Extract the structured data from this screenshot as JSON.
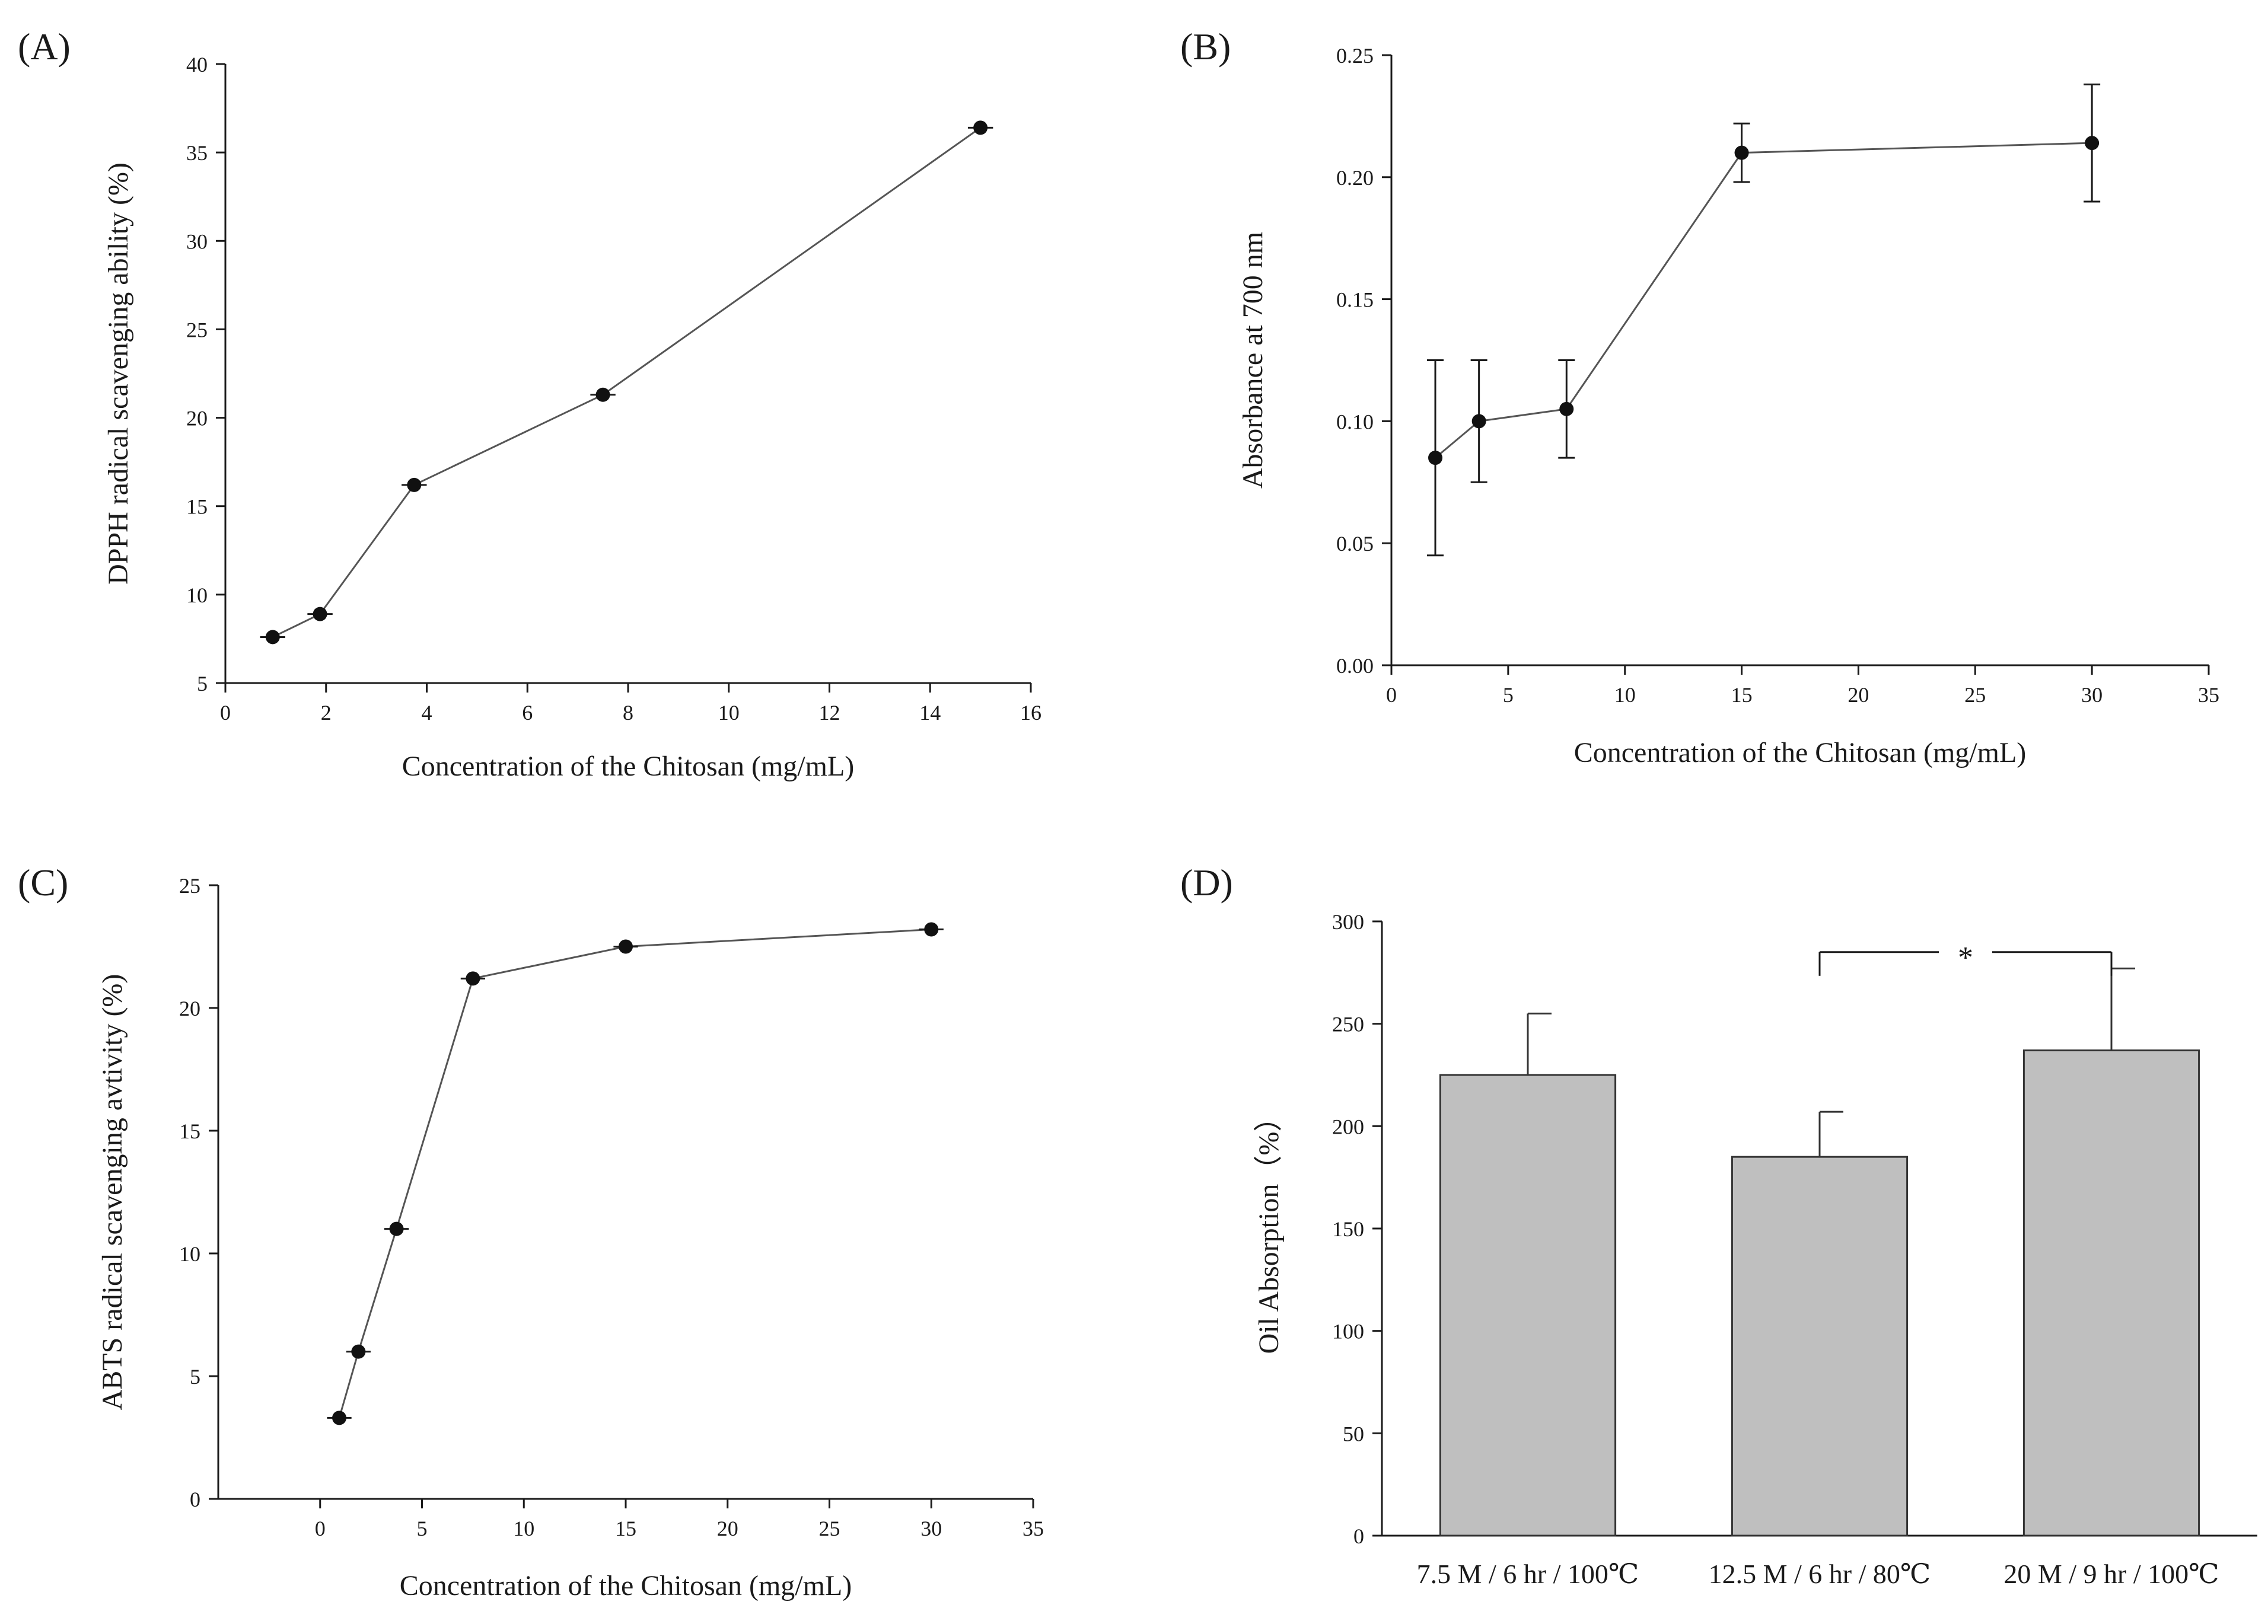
{
  "chart_data": [
    {
      "panel": "(A)",
      "type": "line",
      "xlabel": "Concentration of the Chitosan (mg/mL)",
      "ylabel": "DPPH radical scavenging ability (%)",
      "xlim": [
        0,
        16
      ],
      "ylim": [
        5,
        40
      ],
      "xticks": [
        0,
        2,
        4,
        6,
        8,
        10,
        12,
        14,
        16
      ],
      "yticks": [
        5,
        10,
        15,
        20,
        25,
        30,
        35,
        40
      ],
      "x_error_bars": true,
      "series": [
        {
          "x": [
            0.94,
            1.88,
            3.75,
            7.5,
            15
          ],
          "y": [
            7.6,
            8.9,
            16.2,
            21.3,
            36.4
          ],
          "xerr": [
            0.25,
            0.25,
            0.25,
            0.25,
            0.25
          ],
          "yerr": [
            0,
            0,
            0,
            0,
            0
          ]
        }
      ]
    },
    {
      "panel": "(B)",
      "type": "line",
      "xlabel": "Concentration of the Chitosan (mg/mL)",
      "ylabel": "Absorbance at 700 nm",
      "xlim": [
        0,
        35
      ],
      "ylim": [
        0,
        0.25
      ],
      "xticks": [
        0,
        5,
        10,
        15,
        20,
        25,
        30,
        35
      ],
      "yticks": [
        "0.00",
        "0.05",
        "0.10",
        "0.15",
        "0.20",
        "0.25"
      ],
      "y_error_bars": true,
      "series": [
        {
          "x": [
            1.88,
            3.75,
            7.5,
            15,
            30
          ],
          "y": [
            0.085,
            0.1,
            0.105,
            0.21,
            0.214
          ],
          "yerr_low": [
            0.04,
            0.025,
            0.02,
            0.012,
            0.024
          ],
          "yerr_high": [
            0.04,
            0.025,
            0.02,
            0.012,
            0.024
          ]
        }
      ]
    },
    {
      "panel": "(C)",
      "type": "line",
      "xlabel": "Concentration of the Chitosan (mg/mL)",
      "ylabel": "ABTS radical scavenging avtivity (%)",
      "xlim": [
        -5,
        35
      ],
      "ylim": [
        0,
        25
      ],
      "xticks": [
        0,
        5,
        10,
        15,
        20,
        25,
        30,
        35
      ],
      "yticks": [
        0,
        5,
        10,
        15,
        20,
        25
      ],
      "x_error_bars": true,
      "series": [
        {
          "x": [
            0.94,
            1.88,
            3.75,
            7.5,
            15,
            30
          ],
          "y": [
            3.3,
            6.0,
            11.0,
            21.2,
            22.5,
            23.2
          ],
          "xerr": [
            0.6,
            0.6,
            0.6,
            0.6,
            0.6,
            0.6
          ]
        }
      ]
    },
    {
      "panel": "(D)",
      "type": "bar",
      "xlabel": "",
      "ylabel": "Oil Absorption（%）",
      "ylim": [
        0,
        300
      ],
      "yticks": [
        0,
        50,
        100,
        150,
        200,
        250,
        300
      ],
      "categories": [
        "7.5 M / 6 hr / 100℃",
        "12.5 M / 6 hr / 80℃",
        "20 M / 9 hr / 100℃"
      ],
      "values": [
        225,
        185,
        237
      ],
      "yerr": [
        30,
        22,
        40
      ],
      "bar_color": "#bfbfbf",
      "significance": {
        "from": 1,
        "to": 2,
        "label": "*"
      }
    }
  ]
}
